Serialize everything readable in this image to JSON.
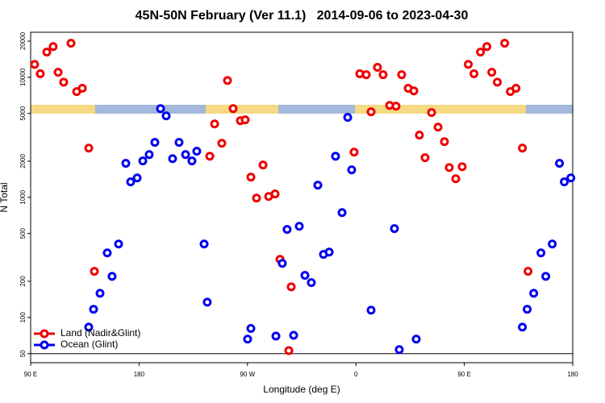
{
  "chart_data": {
    "type": "scatter",
    "title": "45N-50N February (Ver 11.1)   2014-09-06 to 2023-04-30",
    "x_label": "Longitude (deg E)",
    "y_label": "N Total",
    "ylog": true,
    "xlim": [
      90,
      540
    ],
    "ylim": [
      42,
      23700
    ],
    "xticks": [
      {
        "value": 90,
        "label": "90 E"
      },
      {
        "value": 180,
        "label": "180"
      },
      {
        "value": 270,
        "label": "90 W"
      },
      {
        "value": 360,
        "label": "0"
      },
      {
        "value": 450,
        "label": "90 E"
      },
      {
        "value": 540,
        "label": "180"
      }
    ],
    "yticks": [
      50,
      100,
      200,
      500,
      1000,
      2000,
      5000,
      10000,
      20000
    ],
    "legend": "bottom-left",
    "series": [
      {
        "name": "Land (Nadir&Glint)",
        "color": "#ee0000",
        "x": [
          93.3,
          98.0,
          103.4,
          108.7,
          112.8,
          117.4,
          123.5,
          128.2,
          132.9,
          138.2,
          142.9,
          238.7,
          242.7,
          248.7,
          253.4,
          258.1,
          264.1,
          268.1,
          272.8,
          277.5,
          282.9,
          287.6,
          292.9,
          297.0,
          304.3,
          306.3,
          358.5,
          363.2,
          368.6,
          372.6,
          377.9,
          382.6,
          388.0,
          393.3,
          398.0,
          403.4,
          408.1,
          412.7,
          417.4,
          422.8,
          428.2,
          433.5,
          437.5,
          442.9,
          448.2,
          453.3,
          458.0,
          463.4,
          468.7,
          472.8,
          477.4,
          483.5,
          488.2,
          492.9,
          498.2,
          502.9
        ],
        "values": [
          12800,
          10700,
          16200,
          18000,
          11000,
          9100,
          19200,
          7600,
          8100,
          2570,
          242,
          2200,
          4090,
          2820,
          9400,
          5480,
          4350,
          4420,
          1475,
          986,
          1860,
          1018,
          1067,
          305,
          53,
          180,
          2380,
          10700,
          10500,
          5150,
          12100,
          10500,
          5830,
          5740,
          10500,
          8100,
          7700,
          3300,
          2140,
          5080,
          3840,
          2910,
          1770,
          1430,
          1800,
          12800,
          10700,
          16200,
          18000,
          11000,
          9100,
          19200,
          7600,
          8100,
          2570,
          242
        ]
      },
      {
        "name": "Ocean (Glint)",
        "color": "#0000ee",
        "x": [
          138.2,
          142.2,
          147.6,
          153.6,
          157.6,
          163.0,
          169.0,
          173.0,
          178.4,
          183.1,
          188.4,
          193.1,
          197.8,
          202.5,
          207.8,
          213.2,
          218.6,
          223.9,
          227.9,
          234.0,
          236.6,
          270.1,
          272.8,
          293.6,
          298.9,
          302.9,
          308.3,
          313.0,
          317.7,
          323.0,
          328.4,
          333.1,
          337.8,
          343.1,
          348.5,
          353.2,
          356.5,
          372.6,
          392.0,
          396.0,
          410.1,
          498.2,
          502.2,
          507.6,
          513.6,
          517.6,
          523.0,
          529.0,
          533.0,
          538.4
        ],
        "values": [
          83,
          117,
          159,
          345,
          220,
          409,
          1920,
          1345,
          1452,
          2010,
          2270,
          2870,
          5480,
          4770,
          2100,
          2870,
          2270,
          2010,
          2420,
          409,
          134,
          66,
          81,
          70,
          282,
          541,
          71,
          574,
          224,
          195,
          1264,
          335,
          350,
          2200,
          747,
          4630,
          1695,
          115,
          549,
          54,
          66,
          83,
          117,
          159,
          345,
          220,
          409,
          1920,
          1345,
          1452
        ]
      }
    ]
  }
}
